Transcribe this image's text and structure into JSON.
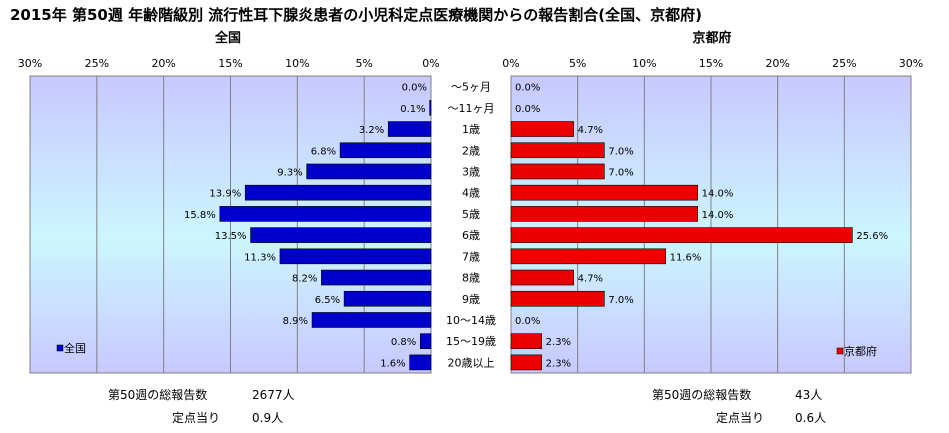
{
  "chart_data": {
    "type": "bar",
    "title": "2015年 第50週 年齢階級別 流行性耳下腺炎患者の小児科定点医療機関からの報告割合(全国、京都府)",
    "categories": [
      "～5ヶ月",
      "～11ヶ月",
      "1歳",
      "2歳",
      "3歳",
      "4歳",
      "5歳",
      "6歳",
      "7歳",
      "8歳",
      "9歳",
      "10～14歳",
      "15～19歳",
      "20歳以上"
    ],
    "xlim": [
      0,
      30
    ],
    "x_ticks": [
      "0%",
      "5%",
      "10%",
      "15%",
      "20%",
      "25%",
      "30%"
    ],
    "grid": true,
    "series": [
      {
        "name": "全国",
        "panel_title": "全国",
        "color": "#0000cc",
        "values": [
          0.0,
          0.1,
          3.2,
          6.8,
          9.3,
          13.9,
          15.8,
          13.5,
          11.3,
          8.2,
          6.5,
          8.9,
          0.8,
          1.6
        ],
        "labels": [
          "0.0%",
          "0.1%",
          "3.2%",
          "6.8%",
          "9.3%",
          "13.9%",
          "15.8%",
          "13.5%",
          "11.3%",
          "8.2%",
          "6.5%",
          "8.9%",
          "0.8%",
          "1.6%"
        ],
        "legend": "全国",
        "legend_position": "bottom-left"
      },
      {
        "name": "京都府",
        "panel_title": "京都府",
        "color": "#ee0000",
        "values": [
          0.0,
          0.0,
          4.7,
          7.0,
          7.0,
          14.0,
          14.0,
          25.6,
          11.6,
          4.7,
          7.0,
          0.0,
          2.3,
          2.3
        ],
        "labels": [
          "0.0%",
          "0.0%",
          "4.7%",
          "7.0%",
          "7.0%",
          "14.0%",
          "14.0%",
          "25.6%",
          "11.6%",
          "4.7%",
          "7.0%",
          "0.0%",
          "2.3%",
          "2.3%"
        ],
        "legend": "京都府",
        "legend_position": "bottom-right"
      }
    ]
  },
  "footer": {
    "left": {
      "total_label": "第50週の総報告数",
      "total_value": "2677人",
      "per_label": "定点当り",
      "per_value": "0.9人"
    },
    "right": {
      "total_label": "第50週の総報告数",
      "total_value": "43人",
      "per_label": "定点当り",
      "per_value": "0.6人"
    }
  }
}
